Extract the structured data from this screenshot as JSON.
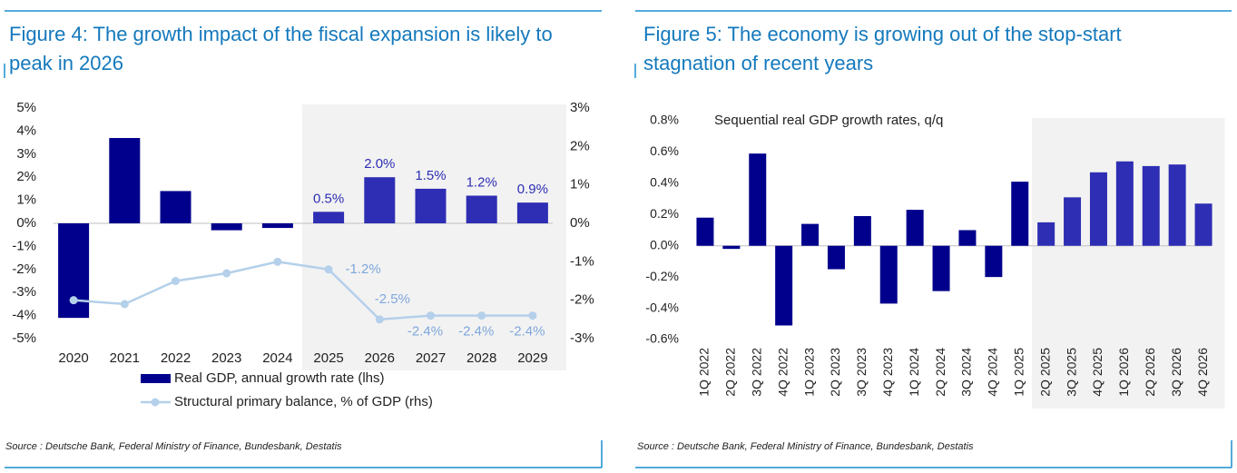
{
  "chart_data": [
    {
      "type": "bar",
      "title": "Figure 4: The growth impact of the fiscal expansion is likely to peak in 2026",
      "source": "Source : Deutsche Bank, Federal Ministry of Finance, Bundesbank, Destatis",
      "categories": [
        "2020",
        "2021",
        "2022",
        "2023",
        "2024",
        "2025",
        "2026",
        "2027",
        "2028",
        "2029"
      ],
      "series": [
        {
          "name": "Real GDP, annual growth rate (lhs)",
          "color": "#00008c",
          "forecast_color": "#2e2eb4",
          "values": [
            -4.1,
            3.7,
            1.4,
            -0.3,
            -0.2,
            0.5,
            2.0,
            1.5,
            1.2,
            0.9
          ],
          "value_labels": [
            null,
            null,
            null,
            null,
            null,
            "0.5%",
            "2.0%",
            "1.5%",
            "1.2%",
            "0.9%"
          ]
        },
        {
          "name": "Structural primary balance, % of GDP (rhs)",
          "type": "line",
          "axis": "y2",
          "color": "#b4d0ea",
          "label_color": "#7fa7dc",
          "values": [
            -2.0,
            -2.1,
            -1.5,
            -1.3,
            -1.0,
            -1.2,
            -2.5,
            -2.4,
            -2.4,
            -2.4
          ],
          "value_labels": [
            null,
            null,
            null,
            null,
            null,
            "-1.2%",
            "-2.5%",
            "-2.4%",
            "-2.4%",
            "-2.4%"
          ]
        }
      ],
      "ylim": [
        -5,
        5
      ],
      "yticks": [
        {
          "value": -5,
          "label": "-5%"
        },
        {
          "value": -4,
          "label": "-4%"
        },
        {
          "value": -3,
          "label": "-3%"
        },
        {
          "value": -2,
          "label": "-2%"
        },
        {
          "value": -1,
          "label": "-1%"
        },
        {
          "value": 0,
          "label": "0%"
        },
        {
          "value": 1,
          "label": "1%"
        },
        {
          "value": 2,
          "label": "2%"
        },
        {
          "value": 3,
          "label": "3%"
        },
        {
          "value": 4,
          "label": "4%"
        },
        {
          "value": 5,
          "label": "5%"
        }
      ],
      "y2lim": [
        -3,
        3
      ],
      "y2ticks": [
        {
          "value": -3,
          "label": "-3%"
        },
        {
          "value": -2,
          "label": "-2%"
        },
        {
          "value": -1,
          "label": "-1%"
        },
        {
          "value": 0,
          "label": "0%"
        },
        {
          "value": 1,
          "label": "1%"
        },
        {
          "value": 2,
          "label": "2%"
        },
        {
          "value": 3,
          "label": "3%"
        }
      ],
      "shade_from": "2025",
      "shade_color": "#f2f2f2"
    },
    {
      "type": "bar",
      "title": "Figure 5: The economy is growing out of the stop-start stagnation of recent years",
      "annotation": "Sequential real GDP growth rates, q/q",
      "source": "Source : Deutsche Bank, Federal Ministry of Finance, Bundesbank, Destatis",
      "categories": [
        "1Q 2022",
        "2Q 2022",
        "3Q 2022",
        "4Q 2022",
        "1Q 2023",
        "2Q 2023",
        "3Q 2023",
        "4Q 2023",
        "1Q 2024",
        "2Q 2024",
        "3Q 2024",
        "4Q 2024",
        "1Q 2025",
        "2Q 2025",
        "3Q 2025",
        "4Q 2025",
        "1Q 2026",
        "2Q 2026",
        "3Q 2026",
        "4Q 2026"
      ],
      "series": [
        {
          "color": "#00008c",
          "forecast_color": "#2e2eb4",
          "values": [
            0.18,
            -0.02,
            0.59,
            -0.51,
            0.14,
            -0.15,
            0.19,
            -0.37,
            0.23,
            -0.29,
            0.1,
            -0.2,
            0.41,
            0.15,
            0.31,
            0.47,
            0.54,
            0.51,
            0.52,
            0.27
          ]
        }
      ],
      "ylim": [
        -0.6,
        0.8
      ],
      "yticks": [
        {
          "value": -0.6,
          "label": "-0.6%"
        },
        {
          "value": -0.4,
          "label": "-0.4%"
        },
        {
          "value": -0.2,
          "label": "-0.2%"
        },
        {
          "value": 0,
          "label": "0.0%"
        },
        {
          "value": 0.2,
          "label": "0.2%"
        },
        {
          "value": 0.4,
          "label": "0.4%"
        },
        {
          "value": 0.6,
          "label": "0.6%"
        },
        {
          "value": 0.8,
          "label": "0.8%"
        }
      ],
      "shade_from": "2Q 2025",
      "shade_color": "#f2f2f2"
    }
  ]
}
